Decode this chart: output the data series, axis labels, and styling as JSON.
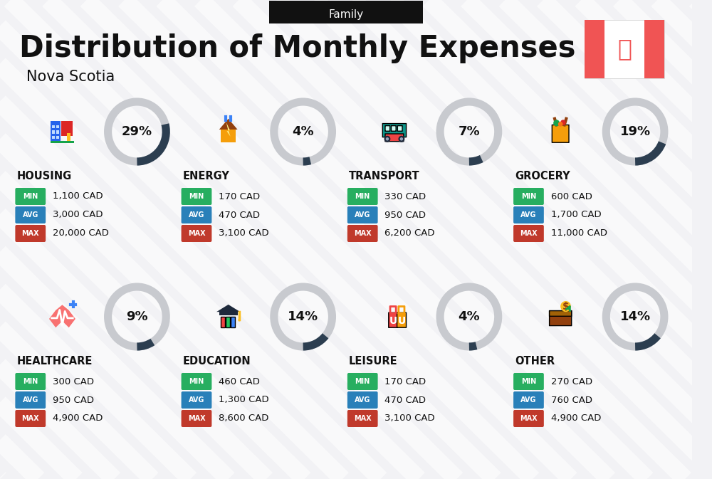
{
  "title": "Distribution of Monthly Expenses",
  "subtitle": "Nova Scotia",
  "header_label": "Family",
  "bg_color": "#f2f2f5",
  "stripe_color": "#e8e8ee",
  "categories": [
    {
      "name": "HOUSING",
      "percent": 29,
      "min": "1,100 CAD",
      "avg": "3,000 CAD",
      "max": "20,000 CAD",
      "icon": "housing",
      "row": 0,
      "col": 0
    },
    {
      "name": "ENERGY",
      "percent": 4,
      "min": "170 CAD",
      "avg": "470 CAD",
      "max": "3,100 CAD",
      "icon": "energy",
      "row": 0,
      "col": 1
    },
    {
      "name": "TRANSPORT",
      "percent": 7,
      "min": "330 CAD",
      "avg": "950 CAD",
      "max": "6,200 CAD",
      "icon": "transport",
      "row": 0,
      "col": 2
    },
    {
      "name": "GROCERY",
      "percent": 19,
      "min": "600 CAD",
      "avg": "1,700 CAD",
      "max": "11,000 CAD",
      "icon": "grocery",
      "row": 0,
      "col": 3
    },
    {
      "name": "HEALTHCARE",
      "percent": 9,
      "min": "300 CAD",
      "avg": "950 CAD",
      "max": "4,900 CAD",
      "icon": "healthcare",
      "row": 1,
      "col": 0
    },
    {
      "name": "EDUCATION",
      "percent": 14,
      "min": "460 CAD",
      "avg": "1,300 CAD",
      "max": "8,600 CAD",
      "icon": "education",
      "row": 1,
      "col": 1
    },
    {
      "name": "LEISURE",
      "percent": 4,
      "min": "170 CAD",
      "avg": "470 CAD",
      "max": "3,100 CAD",
      "icon": "leisure",
      "row": 1,
      "col": 2
    },
    {
      "name": "OTHER",
      "percent": 14,
      "min": "270 CAD",
      "avg": "760 CAD",
      "max": "4,900 CAD",
      "icon": "other",
      "row": 1,
      "col": 3
    }
  ],
  "min_color": "#27ae60",
  "avg_color": "#2980b9",
  "max_color": "#c0392b",
  "arc_dark_color": "#2c3e50",
  "arc_light_color": "#c8cacf",
  "flag_red": "#f05454",
  "header_bg": "#111111",
  "title_color": "#111111",
  "name_color": "#111111"
}
